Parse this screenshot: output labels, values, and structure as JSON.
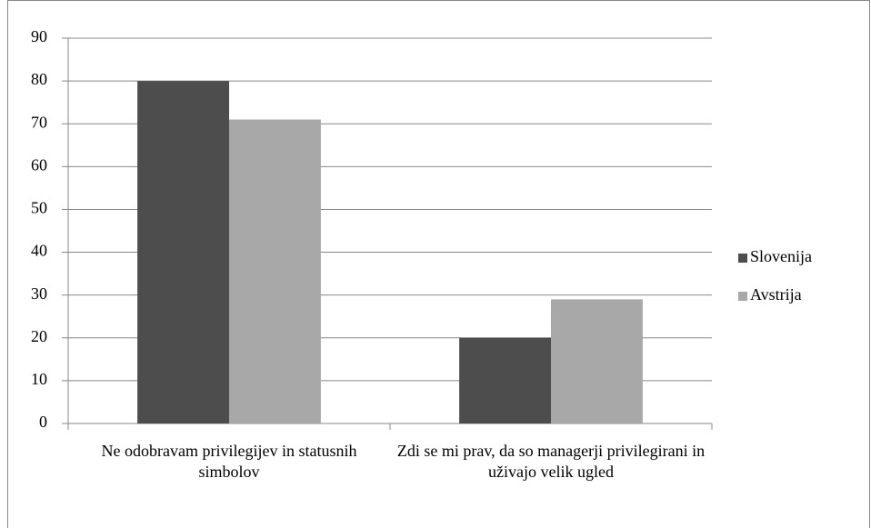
{
  "chart_data": {
    "type": "bar",
    "categories": [
      "Ne odobravam privilegijev in statusnih simbolov",
      "Zdi se mi prav, da so managerji privilegirani in uživajo velik ugled"
    ],
    "series": [
      {
        "name": "Slovenija",
        "color": "#4d4d4d",
        "values": [
          80,
          20
        ]
      },
      {
        "name": "Avstrija",
        "color": "#a8a8a8",
        "values": [
          71,
          29
        ]
      }
    ],
    "ylim": [
      0,
      90
    ],
    "yticks": [
      0,
      10,
      20,
      30,
      40,
      50,
      60,
      70,
      80,
      90
    ],
    "grid": true,
    "legend": "right"
  }
}
